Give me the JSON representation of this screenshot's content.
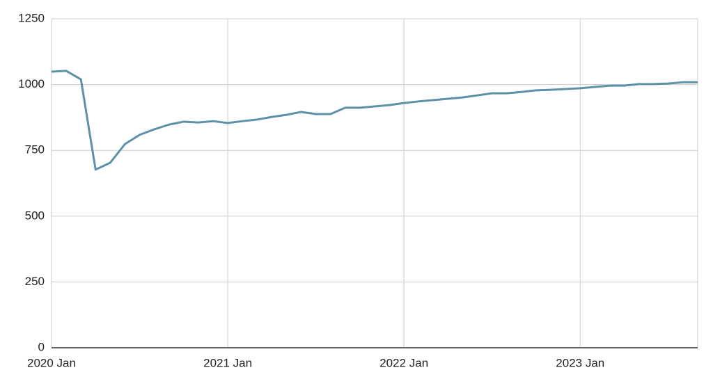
{
  "chart_data": {
    "type": "line",
    "x": [
      "2020-01",
      "2020-02",
      "2020-03",
      "2020-04",
      "2020-05",
      "2020-06",
      "2020-07",
      "2020-08",
      "2020-09",
      "2020-10",
      "2020-11",
      "2020-12",
      "2021-01",
      "2021-02",
      "2021-03",
      "2021-04",
      "2021-05",
      "2021-06",
      "2021-07",
      "2021-08",
      "2021-09",
      "2021-10",
      "2021-11",
      "2021-12",
      "2022-01",
      "2022-02",
      "2022-03",
      "2022-04",
      "2022-05",
      "2022-06",
      "2022-07",
      "2022-08",
      "2022-09",
      "2022-10",
      "2022-11",
      "2022-12",
      "2023-01",
      "2023-02",
      "2023-03",
      "2023-04",
      "2023-05",
      "2023-06",
      "2023-07",
      "2023-08",
      "2023-09"
    ],
    "series": [
      {
        "color": "#5e91a8",
        "values": [
          1049,
          1052,
          1020,
          677,
          703,
          774,
          809,
          830,
          848,
          859,
          856,
          861,
          854,
          861,
          867,
          877,
          885,
          896,
          888,
          888,
          912,
          912,
          917,
          922,
          930,
          936,
          941,
          946,
          951,
          959,
          967,
          967,
          972,
          978,
          980,
          983,
          986,
          991,
          996,
          996,
          1002,
          1002,
          1004,
          1009,
          1009
        ]
      }
    ],
    "xlim": [
      "2020-01",
      "2023-09"
    ],
    "xticks": [
      {
        "value": "2020-01",
        "label": "2020 Jan"
      },
      {
        "value": "2021-01",
        "label": "2021 Jan"
      },
      {
        "value": "2022-01",
        "label": "2022 Jan"
      },
      {
        "value": "2023-01",
        "label": "2023 Jan"
      }
    ],
    "ylim": [
      0,
      1250
    ],
    "yticks": [
      0,
      250,
      500,
      750,
      1000,
      1250
    ],
    "grid": true
  }
}
